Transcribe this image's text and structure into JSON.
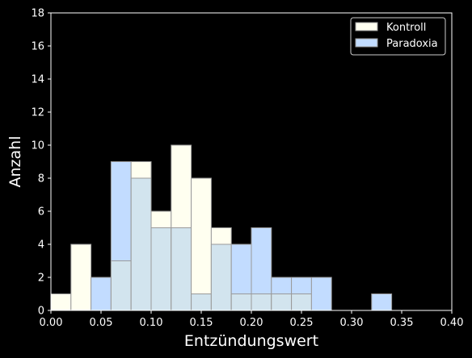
{
  "chart_data": {
    "type": "bar",
    "histogram": true,
    "xlabel": "Entzündungswert",
    "ylabel": "Anzahl",
    "xlim": [
      0.0,
      0.4
    ],
    "ylim": [
      0,
      18
    ],
    "xticks": [
      "0.00",
      "0.05",
      "0.10",
      "0.15",
      "0.20",
      "0.25",
      "0.30",
      "0.35",
      "0.40"
    ],
    "yticks": [
      "0",
      "2",
      "4",
      "6",
      "8",
      "10",
      "12",
      "14",
      "16",
      "18"
    ],
    "bin_width": 0.02,
    "bin_starts": [
      0.0,
      0.02,
      0.04,
      0.06,
      0.08,
      0.1,
      0.12,
      0.14,
      0.16,
      0.18,
      0.2,
      0.22,
      0.24,
      0.26,
      0.28,
      0.3,
      0.32,
      0.34,
      0.36,
      0.38
    ],
    "series": [
      {
        "name": "Kontroll",
        "color": "#fffff0",
        "values": [
          1,
          4,
          0,
          3,
          9,
          6,
          10,
          8,
          5,
          1,
          1,
          1,
          1,
          0,
          0,
          0,
          0,
          0,
          0,
          0
        ]
      },
      {
        "name": "Paradoxia",
        "color": "#c2dcff",
        "values": [
          0,
          0,
          2,
          9,
          8,
          5,
          5,
          1,
          4,
          4,
          5,
          2,
          2,
          2,
          0,
          0,
          1,
          0,
          0,
          0
        ]
      }
    ],
    "legend_position": "top-right",
    "grid": false,
    "background": "#000000",
    "overlap_color": "#d2e4ee",
    "bar_edge_color": "#9a9a9a"
  }
}
